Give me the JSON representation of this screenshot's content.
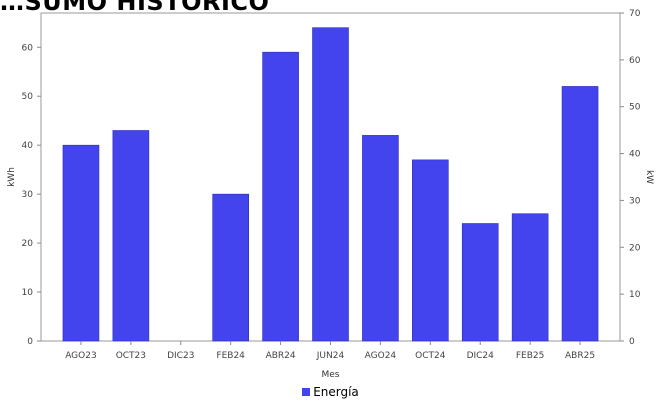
{
  "chart_data": {
    "type": "bar",
    "title": "…SUMO HISTÓRICO",
    "xlabel": "Mes",
    "ylabel": "kWh",
    "y2label": "kW",
    "categories": [
      "AGO23",
      "OCT23",
      "DIC23",
      "FEB24",
      "ABR24",
      "JUN24",
      "AGO24",
      "OCT24",
      "DIC24",
      "FEB25",
      "ABR25"
    ],
    "series": [
      {
        "name": "Energía",
        "values": [
          40,
          43,
          0,
          30,
          59,
          64,
          42,
          37,
          24,
          26,
          52
        ],
        "color": "#4444ee"
      }
    ],
    "ylim": [
      0,
      67
    ],
    "y_ticks": [
      0,
      10,
      20,
      30,
      40,
      50,
      60
    ],
    "y2lim": [
      0,
      70
    ],
    "y2_ticks": [
      0,
      10,
      20,
      30,
      40,
      50,
      60,
      70
    ],
    "grid": false,
    "legend_position": "bottom-center"
  }
}
